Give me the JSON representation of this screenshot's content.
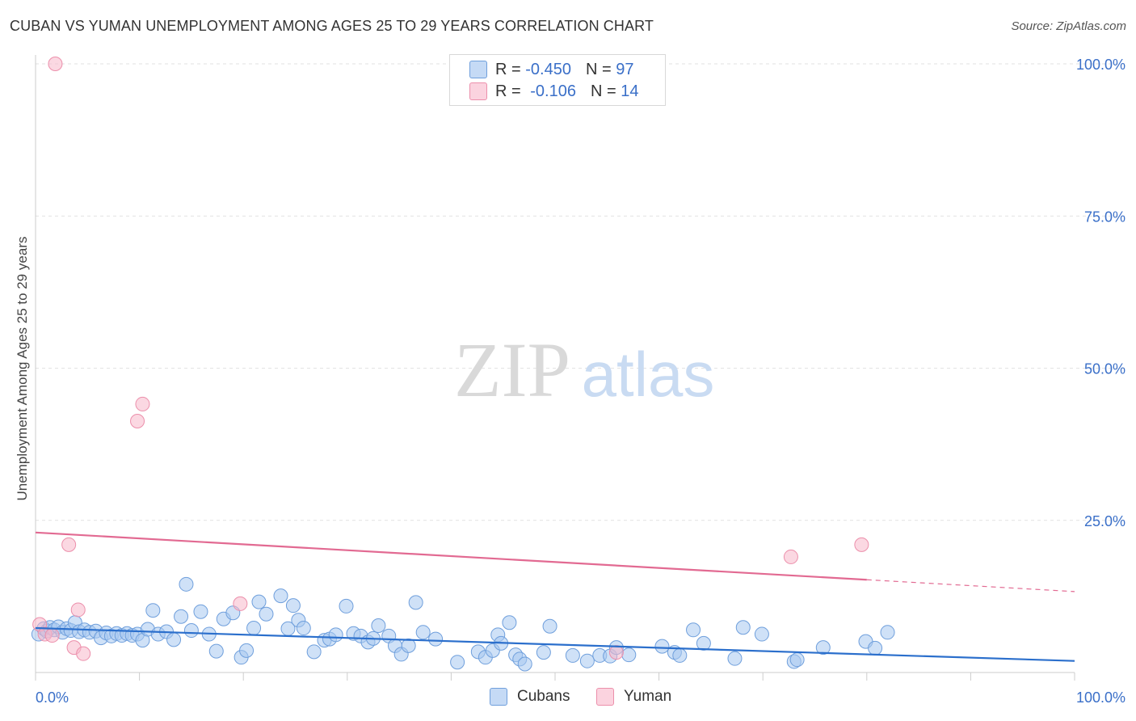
{
  "header": {
    "title": "CUBAN VS YUMAN UNEMPLOYMENT AMONG AGES 25 TO 29 YEARS CORRELATION CHART",
    "source": "Source: ZipAtlas.com"
  },
  "watermark": {
    "zip": "ZIP",
    "atlas": "atlas"
  },
  "legend_top": {
    "rows": [
      {
        "r_label": "R = ",
        "r_value": "-0.450",
        "n_label": "N = ",
        "n_value": "97",
        "color": "#a8c8f0"
      },
      {
        "r_label": "R = ",
        "r_value": "-0.106",
        "n_label": "N = ",
        "n_value": "14",
        "color": "#f7b8cb"
      }
    ]
  },
  "legend_bottom": {
    "items": [
      {
        "label": "Cubans",
        "color": "#a8c8f0"
      },
      {
        "label": "Yuman",
        "color": "#f7b8cb"
      }
    ]
  },
  "colors": {
    "blue_fill": "#a8c8f0",
    "blue_stroke": "#6f9fdc",
    "blue_line": "#2b6fcc",
    "pink_fill": "#f7b8cb",
    "pink_stroke": "#ec8fab",
    "pink_line": "#e26a92",
    "tick_label": "#3a6fc8",
    "grid": "#e2e2e2"
  },
  "chart_data": {
    "type": "scatter",
    "title": "CUBAN VS YUMAN UNEMPLOYMENT AMONG AGES 25 TO 29 YEARS CORRELATION CHART",
    "xlabel": "",
    "ylabel": "Unemployment Among Ages 25 to 29 years",
    "xlim": [
      0,
      100
    ],
    "ylim": [
      0,
      100
    ],
    "x_tick_labels": [
      "0.0%",
      "100.0%"
    ],
    "y_ticks": [
      {
        "value": 25,
        "label": "25.0%"
      },
      {
        "value": 50,
        "label": "50.0%"
      },
      {
        "value": 75,
        "label": "75.0%"
      },
      {
        "value": 100,
        "label": "100.0%"
      }
    ],
    "series": [
      {
        "name": "Cubans",
        "r": -0.45,
        "n": 97,
        "trend": {
          "x": [
            0,
            100
          ],
          "y": [
            7.3,
            1.9
          ],
          "dashed_from": null
        },
        "points": [
          [
            0.3,
            6.3
          ],
          [
            0.8,
            7.2
          ],
          [
            1.1,
            6.8
          ],
          [
            1.4,
            7.4
          ],
          [
            1.8,
            7.0
          ],
          [
            2.2,
            7.5
          ],
          [
            2.6,
            6.6
          ],
          [
            3.0,
            7.2
          ],
          [
            3.4,
            6.9
          ],
          [
            3.8,
            8.2
          ],
          [
            4.2,
            6.7
          ],
          [
            4.7,
            7.0
          ],
          [
            5.2,
            6.6
          ],
          [
            5.8,
            6.8
          ],
          [
            6.3,
            5.7
          ],
          [
            6.8,
            6.5
          ],
          [
            7.3,
            6.0
          ],
          [
            7.8,
            6.4
          ],
          [
            8.3,
            6.1
          ],
          [
            8.8,
            6.4
          ],
          [
            9.3,
            6.1
          ],
          [
            9.8,
            6.3
          ],
          [
            10.3,
            5.3
          ],
          [
            10.8,
            7.1
          ],
          [
            11.3,
            10.2
          ],
          [
            11.8,
            6.3
          ],
          [
            12.6,
            6.7
          ],
          [
            13.3,
            5.4
          ],
          [
            14.0,
            9.2
          ],
          [
            14.5,
            14.5
          ],
          [
            15.0,
            6.9
          ],
          [
            15.9,
            10.0
          ],
          [
            16.7,
            6.3
          ],
          [
            17.4,
            3.5
          ],
          [
            18.1,
            8.8
          ],
          [
            19.0,
            9.8
          ],
          [
            19.8,
            2.5
          ],
          [
            20.3,
            3.6
          ],
          [
            21.0,
            7.3
          ],
          [
            21.5,
            11.6
          ],
          [
            22.2,
            9.6
          ],
          [
            23.6,
            12.6
          ],
          [
            24.3,
            7.2
          ],
          [
            24.8,
            11.0
          ],
          [
            25.3,
            8.6
          ],
          [
            25.8,
            7.3
          ],
          [
            26.8,
            3.4
          ],
          [
            27.8,
            5.3
          ],
          [
            28.3,
            5.5
          ],
          [
            28.9,
            6.2
          ],
          [
            29.9,
            10.9
          ],
          [
            30.6,
            6.4
          ],
          [
            31.3,
            6.0
          ],
          [
            32.0,
            5.0
          ],
          [
            32.5,
            5.6
          ],
          [
            33.0,
            7.7
          ],
          [
            34.0,
            6.0
          ],
          [
            34.6,
            4.4
          ],
          [
            35.2,
            3.0
          ],
          [
            35.9,
            4.4
          ],
          [
            36.6,
            11.5
          ],
          [
            37.3,
            6.6
          ],
          [
            38.5,
            5.5
          ],
          [
            40.6,
            1.7
          ],
          [
            42.6,
            3.4
          ],
          [
            43.3,
            2.5
          ],
          [
            44.0,
            3.6
          ],
          [
            44.5,
            6.2
          ],
          [
            44.8,
            4.8
          ],
          [
            45.6,
            8.2
          ],
          [
            46.2,
            2.9
          ],
          [
            46.6,
            2.2
          ],
          [
            47.1,
            1.4
          ],
          [
            48.9,
            3.3
          ],
          [
            49.5,
            7.6
          ],
          [
            51.7,
            2.8
          ],
          [
            53.1,
            1.9
          ],
          [
            54.3,
            2.8
          ],
          [
            55.3,
            2.7
          ],
          [
            55.9,
            4.1
          ],
          [
            57.1,
            2.9
          ],
          [
            60.3,
            4.3
          ],
          [
            61.5,
            3.3
          ],
          [
            62.0,
            2.8
          ],
          [
            63.3,
            7.0
          ],
          [
            64.3,
            4.8
          ],
          [
            67.3,
            2.3
          ],
          [
            68.1,
            7.4
          ],
          [
            69.9,
            6.3
          ],
          [
            73.0,
            1.8
          ],
          [
            73.3,
            2.1
          ],
          [
            75.8,
            4.1
          ],
          [
            79.9,
            5.1
          ],
          [
            80.8,
            4.0
          ],
          [
            82.0,
            6.6
          ]
        ]
      },
      {
        "name": "Yuman",
        "r": -0.106,
        "n": 14,
        "trend": {
          "x": [
            0,
            100
          ],
          "y": [
            23.0,
            13.3
          ],
          "dashed_from": 80
        },
        "points": [
          [
            0.4,
            7.9
          ],
          [
            0.9,
            6.3
          ],
          [
            1.6,
            6.1
          ],
          [
            1.9,
            100.0
          ],
          [
            3.2,
            21.0
          ],
          [
            3.7,
            4.1
          ],
          [
            4.1,
            10.3
          ],
          [
            4.6,
            3.1
          ],
          [
            9.8,
            41.3
          ],
          [
            10.3,
            44.1
          ],
          [
            19.7,
            11.3
          ],
          [
            55.9,
            3.3
          ],
          [
            72.7,
            19.0
          ],
          [
            79.5,
            21.0
          ]
        ]
      }
    ]
  }
}
